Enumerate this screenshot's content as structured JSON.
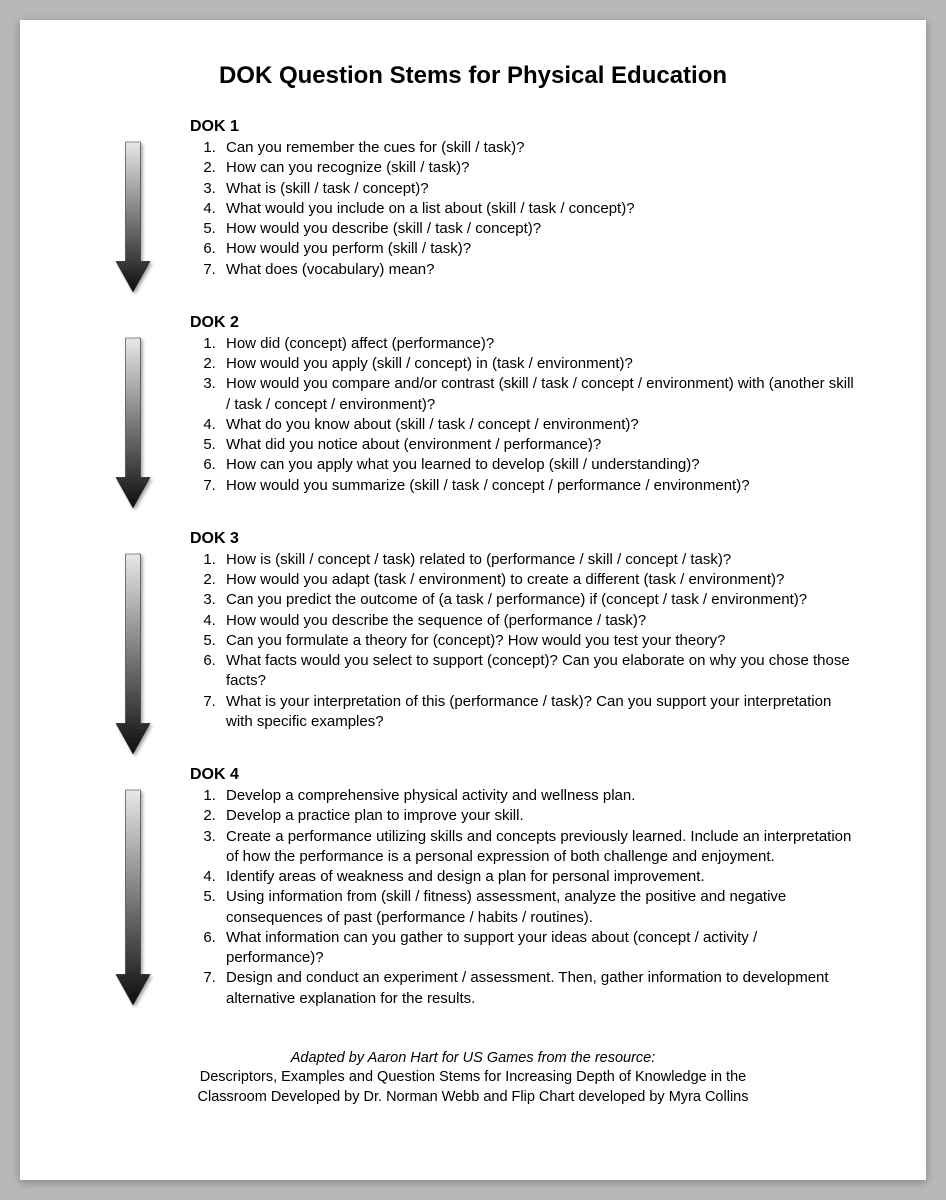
{
  "title": "DOK Question Stems for Physical Education",
  "arrow": {
    "width": 34,
    "gradient_top": "#e8e8e8",
    "gradient_bottom": "#0d0d0d",
    "stroke": "#2a2a2a",
    "shadow_color": "rgba(0,0,0,0.35)"
  },
  "sections": [
    {
      "heading": "DOK 1",
      "arrow_height": 150,
      "items": [
        "Can you remember the cues for (skill / task)?",
        "How can you recognize (skill / task)?",
        "What is (skill / task / concept)?",
        "What would you include on a list about (skill / task / concept)?",
        "How would you describe (skill / task / concept)?",
        "How would you perform (skill / task)?",
        "What does (vocabulary) mean?"
      ]
    },
    {
      "heading": "DOK 2",
      "arrow_height": 170,
      "items": [
        "How did (concept) affect (performance)?",
        "How would you apply (skill / concept) in (task / environment)?",
        "How would you compare and/or contrast (skill / task / concept / environment) with (another skill / task / concept / environment)?",
        "What do you know about (skill / task / concept / environment)?",
        "What did you notice about (environment / performance)?",
        "How can you apply what you learned to develop (skill / understanding)?",
        "How would you summarize (skill / task / concept / performance / environment)?"
      ]
    },
    {
      "heading": "DOK 3",
      "arrow_height": 200,
      "items": [
        "How is (skill / concept / task) related to (performance / skill / concept / task)?",
        "How would you adapt (task / environment) to create a different (task / environment)?",
        "Can you predict the outcome of (a task / performance) if (concept / task / environment)?",
        "How would you describe the sequence of (performance / task)?",
        "Can you formulate a theory for (concept)? How would you test your theory?",
        "What facts would you select to support (concept)? Can you elaborate on why you chose those facts?",
        "What is your interpretation of this (performance / task)? Can you support your interpretation with specific examples?"
      ]
    },
    {
      "heading": "DOK 4",
      "arrow_height": 215,
      "items": [
        "Develop a comprehensive physical activity and wellness plan.",
        "Develop a practice plan to improve your skill.",
        "Create a performance utilizing skills and concepts previously learned. Include an interpretation of how the performance is a personal expression of both challenge and enjoyment.",
        "Identify areas of weakness and design a plan for personal improvement.",
        "Using information from (skill / fitness) assessment, analyze the positive and negative consequences of past (performance / habits / routines).",
        "What information can you gather to support your ideas about (concept / activity / performance)?",
        "Design and conduct an experiment / assessment. Then, gather information to development alternative explanation for the results."
      ]
    }
  ],
  "footer": {
    "line1": "Adapted by Aaron Hart for US Games from the resource:",
    "line2": "Descriptors, Examples and Question Stems for Increasing Depth of Knowledge in the",
    "line3": "Classroom Developed by Dr. Norman Webb and Flip Chart developed by Myra Collins"
  }
}
